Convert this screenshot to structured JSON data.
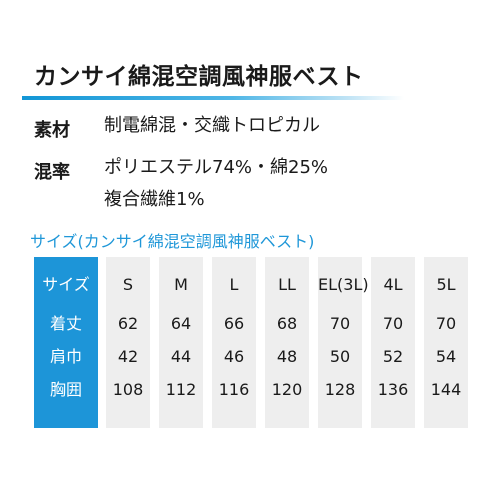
{
  "product": {
    "title": "カンサイ綿混空調風神服ベスト"
  },
  "specs": {
    "material_label": "素材",
    "material_value": "制電綿混・交織トロピカル",
    "blend_label": "混率",
    "blend_value_line1": "ポリエステル74%・綿25%",
    "blend_value_line2": "複合繊維1%"
  },
  "size_section": {
    "caption": "サイズ(カンサイ綿混空調風神服ベスト)"
  },
  "size_table": {
    "row_headers": [
      "サイズ",
      "着丈",
      "肩巾",
      "胸囲"
    ],
    "columns": [
      {
        "size": "S",
        "length": "62",
        "shoulder": "42",
        "chest": "108"
      },
      {
        "size": "M",
        "length": "64",
        "shoulder": "44",
        "chest": "112"
      },
      {
        "size": "L",
        "length": "66",
        "shoulder": "46",
        "chest": "116"
      },
      {
        "size": "LL",
        "length": "68",
        "shoulder": "48",
        "chest": "120"
      },
      {
        "size": "EL(3L)",
        "length": "70",
        "shoulder": "50",
        "chest": "128"
      },
      {
        "size": "4L",
        "length": "70",
        "shoulder": "52",
        "chest": "136"
      },
      {
        "size": "5L",
        "length": "70",
        "shoulder": "54",
        "chest": "144"
      }
    ]
  },
  "colors": {
    "accent_blue": "#1d95d8",
    "cell_gray": "#eeeeee",
    "text_dark": "#1a1a1a"
  }
}
